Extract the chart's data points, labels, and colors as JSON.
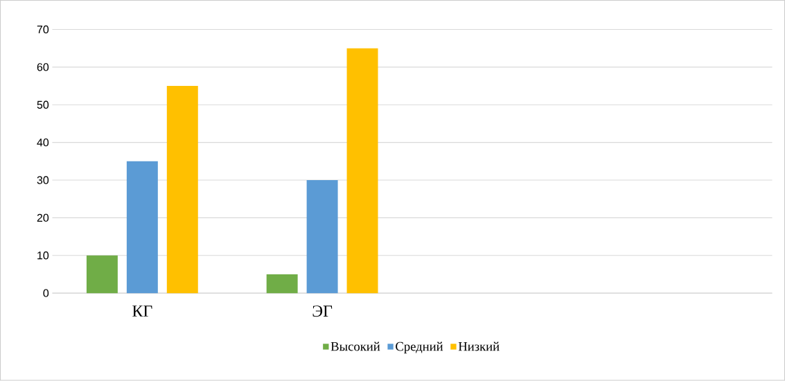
{
  "chart_data": {
    "type": "bar",
    "categories": [
      "КГ",
      "ЭГ",
      null,
      null
    ],
    "series": [
      {
        "name": "Высокий",
        "color": "#70ad47",
        "values": [
          10,
          5,
          null,
          null
        ]
      },
      {
        "name": "Средний",
        "color": "#5b9bd5",
        "values": [
          35,
          30,
          null,
          null
        ]
      },
      {
        "name": "Низкий",
        "color": "#ffc000",
        "values": [
          55,
          65,
          null,
          null
        ]
      }
    ],
    "ylim": [
      0,
      70
    ],
    "yticks": [
      0,
      10,
      20,
      30,
      40,
      50,
      60,
      70
    ],
    "grid": "y",
    "legend": "bottom"
  }
}
